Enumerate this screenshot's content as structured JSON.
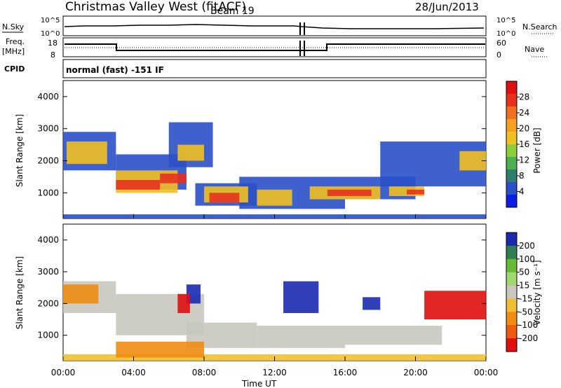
{
  "header": {
    "station": "Christmas Valley West (fitACF)",
    "beam": "Beam 19",
    "date": "28/Jun/2013"
  },
  "side_labels": {
    "nsky": "N.Sky",
    "freq_line1": "Freq.",
    "freq_line2": "[MHz]",
    "cpid": "CPID",
    "nsearch": "N.Search",
    "nave": "Nave",
    "cpid_value": "normal (fast) -151 IF"
  },
  "chart_data": [
    {
      "type": "line",
      "name": "noise",
      "ylabel_left": "N.Sky",
      "ylabel_right": "N.Search",
      "y_ticks_left": [
        "10^5",
        "10^0"
      ],
      "y_ticks_right": [
        "10^5",
        "10^0"
      ],
      "note": "noise levels vs time, near-constant"
    },
    {
      "type": "line",
      "name": "frequency_nave",
      "y_ticks_left": [
        "18",
        "8"
      ],
      "y_ticks_right": [
        "60",
        "0"
      ],
      "series": [
        {
          "name": "Freq",
          "x": [
            "00:00",
            "03:00",
            "03:00",
            "15:00",
            "15:00",
            "24:00"
          ],
          "values": [
            14.5,
            14.5,
            11.0,
            11.0,
            14.5,
            14.5
          ]
        },
        {
          "name": "Nave",
          "x": [
            "00:00",
            "24:00"
          ],
          "values": [
            10,
            10
          ]
        }
      ]
    },
    {
      "type": "heatmap",
      "name": "power",
      "ylabel": "Slant Range [km]",
      "y_ticks": [
        1000,
        2000,
        3000,
        4000
      ],
      "ylim": [
        200,
        4500
      ],
      "x_ticks": [
        "00:00",
        "04:00",
        "08:00",
        "12:00",
        "16:00",
        "20:00",
        "00:00"
      ],
      "colorbar_label": "Power [dB]",
      "colorbar_ticks": [
        "28",
        "24",
        "20",
        "16",
        "12",
        "8",
        "4"
      ],
      "colorbar_colors": [
        "#0a1ee6",
        "#2a50c8",
        "#2e7d6e",
        "#4caf50",
        "#8ccf3a",
        "#f0c020",
        "#f5a020",
        "#f07020",
        "#e83020",
        "#e01010"
      ]
    },
    {
      "type": "heatmap",
      "name": "velocity",
      "ylabel": "Slant Range [km]",
      "y_ticks": [
        1000,
        2000,
        3000,
        4000
      ],
      "ylim": [
        200,
        4500
      ],
      "x_ticks": [
        "00:00",
        "04:00",
        "08:00",
        "12:00",
        "16:00",
        "20:00",
        "00:00"
      ],
      "xlabel": "Time UT",
      "colorbar_label": "Velocity [m s⁻¹]",
      "colorbar_ticks": [
        "200",
        "100",
        "50",
        "15",
        "-15",
        "-50",
        "-100",
        "-200"
      ],
      "colorbar_colors": [
        "#1a2ab0",
        "#2f7f4f",
        "#66bb33",
        "#a0d870",
        "#c8c8c0",
        "#f0c030",
        "#f08c10",
        "#ee5a10",
        "#e01010"
      ]
    }
  ]
}
